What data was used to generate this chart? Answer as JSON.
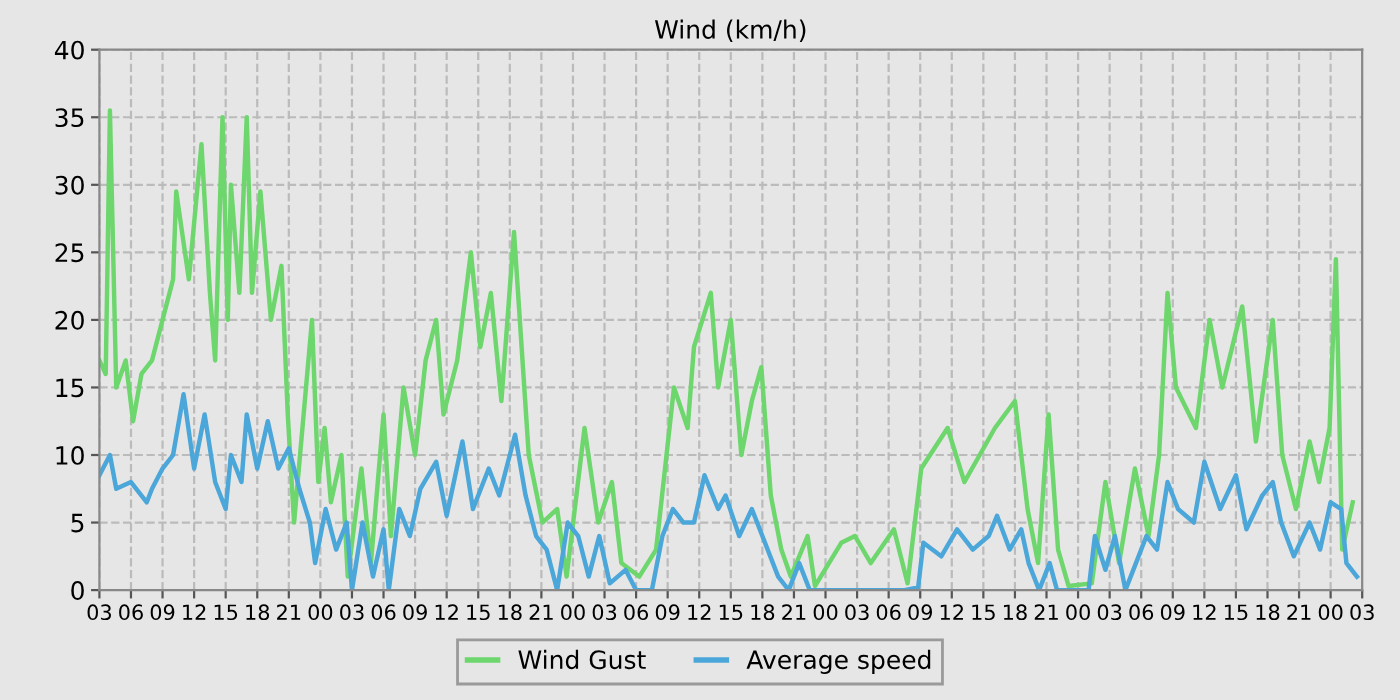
{
  "chart_data": {
    "type": "line",
    "title": "Wind (km/h)",
    "xlim": [
      3,
      123
    ],
    "ylim": [
      0,
      40
    ],
    "yticks": [
      0,
      5,
      10,
      15,
      20,
      25,
      30,
      35,
      40
    ],
    "xticks": [
      {
        "value": 3,
        "label": "03"
      },
      {
        "value": 6,
        "label": "06"
      },
      {
        "value": 9,
        "label": "09"
      },
      {
        "value": 12,
        "label": "12"
      },
      {
        "value": 15,
        "label": "15"
      },
      {
        "value": 18,
        "label": "18"
      },
      {
        "value": 21,
        "label": "21"
      },
      {
        "value": 24,
        "label": "00"
      },
      {
        "value": 27,
        "label": "03"
      },
      {
        "value": 30,
        "label": "06"
      },
      {
        "value": 33,
        "label": "09"
      },
      {
        "value": 36,
        "label": "12"
      },
      {
        "value": 39,
        "label": "15"
      },
      {
        "value": 42,
        "label": "18"
      },
      {
        "value": 45,
        "label": "21"
      },
      {
        "value": 48,
        "label": "00"
      },
      {
        "value": 51,
        "label": "03"
      },
      {
        "value": 54,
        "label": "06"
      },
      {
        "value": 57,
        "label": "09"
      },
      {
        "value": 60,
        "label": "12"
      },
      {
        "value": 63,
        "label": "15"
      },
      {
        "value": 66,
        "label": "18"
      },
      {
        "value": 69,
        "label": "21"
      },
      {
        "value": 72,
        "label": "00"
      },
      {
        "value": 75,
        "label": "03"
      },
      {
        "value": 78,
        "label": "06"
      },
      {
        "value": 81,
        "label": "09"
      },
      {
        "value": 84,
        "label": "12"
      },
      {
        "value": 87,
        "label": "15"
      },
      {
        "value": 90,
        "label": "18"
      },
      {
        "value": 93,
        "label": "21"
      },
      {
        "value": 96,
        "label": "00"
      },
      {
        "value": 99,
        "label": "03"
      },
      {
        "value": 102,
        "label": "06"
      },
      {
        "value": 105,
        "label": "09"
      },
      {
        "value": 108,
        "label": "12"
      },
      {
        "value": 111,
        "label": "15"
      },
      {
        "value": 114,
        "label": "18"
      },
      {
        "value": 117,
        "label": "21"
      },
      {
        "value": 120,
        "label": "00"
      },
      {
        "value": 123,
        "label": "03"
      }
    ],
    "grid": true,
    "legend": "bottom",
    "marker": "none",
    "series": [
      {
        "name": "Wind Gust",
        "color": "#6dd66d",
        "x": [
          3,
          3.6,
          4,
          4.6,
          5.5,
          6.2,
          7,
          8,
          9,
          10,
          10.3,
          11.5,
          12.7,
          13.5,
          14,
          14.7,
          15.2,
          15.5,
          16.3,
          17,
          17.5,
          18.3,
          19.3,
          20.3,
          20.9,
          21.5,
          23.2,
          23.8,
          24.4,
          25,
          26,
          26.6,
          27.9,
          28.8,
          30,
          30.7,
          31.9,
          33,
          34,
          35,
          35.7,
          37,
          38.3,
          39.2,
          40.2,
          41.2,
          42.4,
          43.8,
          45.1,
          46.5,
          47.4,
          49.1,
          50.4,
          51.7,
          52.6,
          54.3,
          55.9,
          57.6,
          58.9,
          59.5,
          61.1,
          61.8,
          63,
          64,
          65,
          65.9,
          66.8,
          67.8,
          68.7,
          70.3,
          71,
          73.5,
          74.8,
          76.3,
          78.5,
          79.8,
          81.1,
          83.6,
          85.2,
          88.1,
          90,
          91.2,
          92.2,
          93.2,
          94.1,
          95.1,
          97.3,
          98.6,
          99.9,
          101.4,
          102.7,
          103.7,
          104.5,
          105.3,
          107.2,
          108.5,
          109.7,
          111.6,
          112.9,
          114.5,
          115.4,
          116.7,
          118,
          118.9,
          119.9,
          120.5,
          121.1,
          122.1
        ],
        "values": [
          17,
          16,
          35.5,
          15,
          17,
          12.5,
          16,
          17,
          20,
          23,
          29.5,
          23,
          33,
          22,
          17,
          35,
          20,
          30,
          22,
          35,
          22,
          29.5,
          20,
          24,
          13,
          5,
          20,
          8,
          12,
          6.5,
          10,
          1,
          9,
          2,
          13,
          4,
          15,
          10,
          17,
          20,
          13,
          17,
          25,
          18,
          22,
          14,
          26.5,
          10,
          5,
          6,
          1,
          12,
          5,
          8,
          2,
          1,
          3,
          15,
          12,
          18,
          22,
          15,
          20,
          10,
          14,
          16.5,
          7,
          3,
          1,
          4,
          0.3,
          3.5,
          4,
          2,
          4.5,
          0.5,
          9,
          12,
          8,
          12,
          14,
          6,
          2,
          13,
          3,
          0.3,
          0.5,
          8,
          2,
          9,
          4,
          10,
          22,
          15,
          12,
          20,
          15,
          21,
          11,
          20,
          10,
          6,
          11,
          8,
          12,
          24.5,
          3,
          6.5
        ]
      },
      {
        "name": "Average speed",
        "color": "#4ba6d9",
        "x": [
          3,
          4,
          4.6,
          6,
          7.5,
          8,
          9,
          10,
          11,
          12,
          13,
          14,
          15,
          15.5,
          16.5,
          17,
          18,
          19,
          20,
          21,
          22,
          23,
          23.5,
          24.5,
          25.5,
          26.5,
          27,
          28,
          29,
          30,
          30.5,
          31.5,
          32.5,
          33.5,
          35,
          36,
          37.5,
          38.5,
          40,
          41,
          42.5,
          43.5,
          44.5,
          45.5,
          46.5,
          47.5,
          48.5,
          49.5,
          50.5,
          51.5,
          53,
          54,
          55.5,
          56.5,
          57.5,
          58.5,
          59.5,
          60.5,
          61.8,
          62.5,
          63.8,
          65,
          66,
          67.5,
          68.5,
          69.5,
          70.5,
          72,
          76,
          79.5,
          80.8,
          81.3,
          83,
          84.5,
          86,
          87.5,
          88.3,
          89.5,
          90.6,
          91.3,
          92.3,
          93.3,
          94,
          97,
          97.6,
          98.6,
          99.5,
          100.5,
          101.5,
          102.5,
          103.5,
          104.5,
          105.5,
          107,
          108,
          109.5,
          111,
          112,
          113.5,
          114.5,
          115.3,
          116.5,
          118,
          119,
          120,
          121,
          121.5,
          122.5
        ],
        "values": [
          8.5,
          10,
          7.5,
          8,
          6.5,
          7.5,
          9,
          10,
          14.5,
          9,
          13,
          8,
          6,
          10,
          8,
          13,
          9,
          12.5,
          9,
          10.5,
          7.5,
          5,
          2,
          6,
          3,
          5,
          0,
          5,
          1,
          4.5,
          0,
          6,
          4,
          7.5,
          9.5,
          5.5,
          11,
          6,
          9,
          7,
          11.5,
          7,
          4,
          3,
          0,
          5,
          4,
          1,
          4,
          0.5,
          1.5,
          0,
          0,
          4,
          6,
          5,
          5,
          8.5,
          6,
          7,
          4,
          6,
          4,
          1,
          0,
          2,
          0,
          0,
          0,
          0,
          0.2,
          3.5,
          2.5,
          4.5,
          3,
          4,
          5.5,
          3,
          4.5,
          2,
          0,
          2,
          0,
          0,
          4,
          1.5,
          4,
          0,
          2,
          4,
          3,
          8,
          6,
          5,
          9.5,
          6,
          8.5,
          4.5,
          7,
          8,
          5,
          2.5,
          5,
          3,
          6.5,
          6,
          2,
          1
        ]
      }
    ]
  }
}
